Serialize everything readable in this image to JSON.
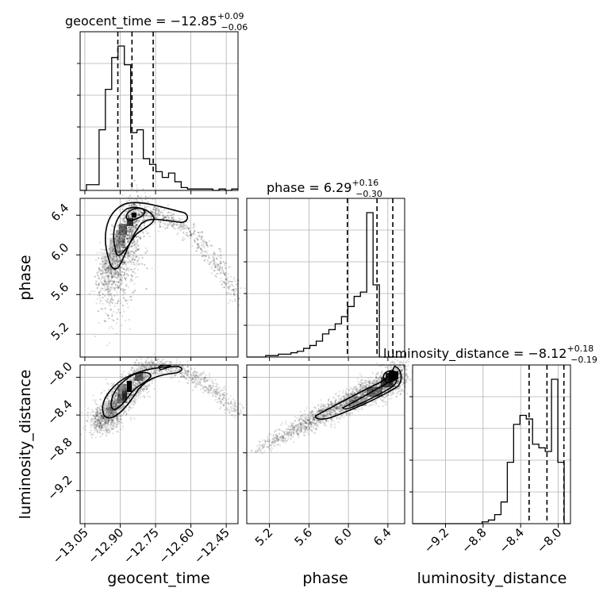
{
  "chart_data": {
    "type": "corner",
    "parameters": [
      "geocent_time",
      "phase",
      "luminosity_distance"
    ],
    "titles": [
      {
        "name": "geocent_time",
        "median": "−12.85",
        "plus": "+0.09",
        "minus": "−0.06"
      },
      {
        "name": "phase",
        "median": "6.29",
        "plus": "+0.16",
        "minus": "−0.30"
      },
      {
        "name": "luminosity_distance",
        "median": "−8.12",
        "plus": "+0.18",
        "minus": "−0.19"
      }
    ],
    "axis_labels": [
      "geocent_time",
      "phase",
      "luminosity_distance"
    ],
    "ranges": [
      [
        -13.07,
        -12.4
      ],
      [
        4.97,
        6.57
      ],
      [
        -9.55,
        -7.87
      ]
    ],
    "ticks": {
      "geocent_time": [
        -13.05,
        -12.9,
        -12.75,
        -12.6,
        -12.45
      ],
      "phase": [
        5.2,
        5.6,
        6.0,
        6.4
      ],
      "luminosity_distance": [
        -9.2,
        -8.8,
        -8.4,
        -8.0
      ]
    },
    "tick_labels": {
      "geocent_time": [
        "−13.05",
        "−12.90",
        "−12.75",
        "−12.60",
        "−12.45"
      ],
      "phase": [
        "5.2",
        "5.6",
        "6.0",
        "6.4"
      ],
      "luminosity_distance": [
        "−9.2",
        "−8.8",
        "−8.4",
        "−8.0"
      ]
    },
    "quantiles": {
      "geocent_time": [
        -12.91,
        -12.85,
        -12.76
      ],
      "phase": [
        5.99,
        6.29,
        6.45
      ],
      "luminosity_distance": [
        -8.31,
        -8.12,
        -7.94
      ]
    },
    "hist": {
      "geocent_time": {
        "edges_start": -13.07,
        "bin_width": 0.0268,
        "counts": [
          0,
          4,
          4,
          42,
          70,
          92,
          100,
          87,
          40,
          42,
          22,
          18,
          13,
          9,
          12,
          6,
          2,
          1,
          1,
          1,
          1,
          0,
          1,
          0,
          1
        ]
      },
      "phase": {
        "edges_start": 4.97,
        "bin_width": 0.064,
        "counts": [
          0,
          0,
          0,
          1,
          1,
          2,
          2,
          3,
          4,
          6,
          8,
          11,
          16,
          19,
          23,
          28,
          35,
          42,
          45,
          100,
          50,
          0,
          0,
          0,
          0
        ]
      },
      "luminosity_distance": {
        "edges_start": -9.55,
        "bin_width": 0.0672,
        "counts": [
          0,
          0,
          0,
          0,
          0,
          0,
          0,
          0,
          0,
          0,
          0,
          1,
          2,
          5,
          12,
          34,
          55,
          60,
          58,
          44,
          42,
          40,
          80,
          34,
          0
        ]
      }
    },
    "grid": true,
    "colors": {
      "line": "#000000",
      "grid": "#b0b0b0",
      "density": "#000000"
    }
  }
}
